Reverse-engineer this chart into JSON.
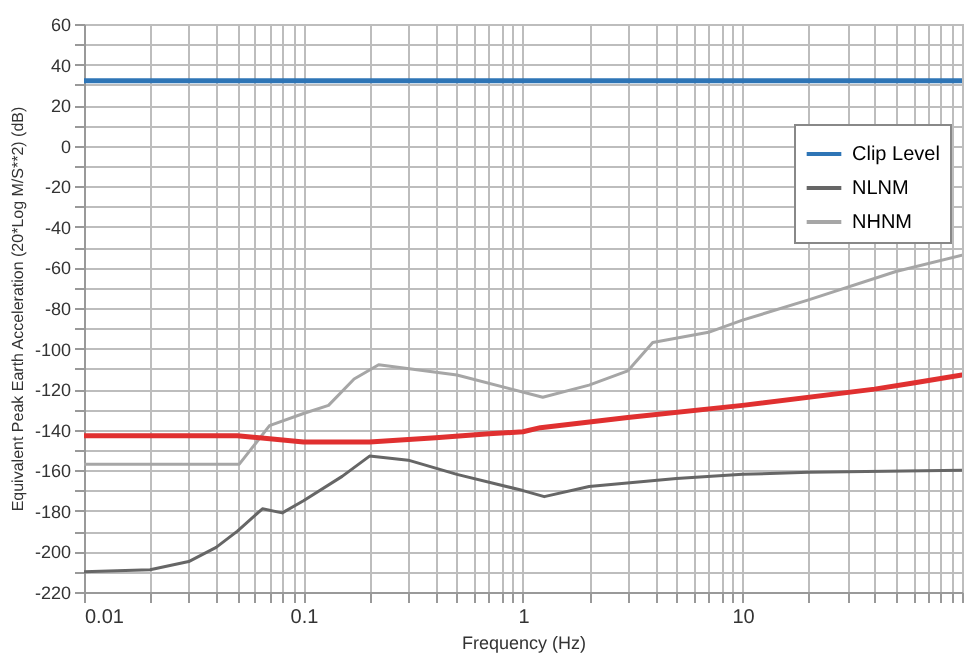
{
  "chart_data": {
    "type": "line",
    "xlabel": "Frequency (Hz)",
    "ylabel": "Equivalent Peak Earth Acceleration (20*Log M/S**2) (dB)",
    "log": "x",
    "grid": true,
    "legend": "top right",
    "xlim": [
      0.01,
      100
    ],
    "ylim": [
      -220,
      60
    ],
    "xticks": [
      0.01,
      {
        "value": 0.02,
        "label": null
      },
      {
        "value": 0.03,
        "label": null
      },
      {
        "value": 0.04,
        "label": null
      },
      {
        "value": 0.05,
        "label": null
      },
      {
        "value": 0.06,
        "label": null
      },
      {
        "value": 0.07,
        "label": null
      },
      {
        "value": 0.08,
        "label": null
      },
      {
        "value": 0.09,
        "label": null
      },
      0.1,
      {
        "value": 0.2,
        "label": null
      },
      {
        "value": 0.3,
        "label": null
      },
      {
        "value": 0.4,
        "label": null
      },
      {
        "value": 0.5,
        "label": null
      },
      {
        "value": 0.6,
        "label": null
      },
      {
        "value": 0.7,
        "label": null
      },
      {
        "value": 0.8,
        "label": null
      },
      {
        "value": 0.9,
        "label": null
      },
      1,
      {
        "value": 2,
        "label": null
      },
      {
        "value": 3,
        "label": null
      },
      {
        "value": 4,
        "label": null
      },
      {
        "value": 5,
        "label": null
      },
      {
        "value": 6,
        "label": null
      },
      {
        "value": 7,
        "label": null
      },
      {
        "value": 8,
        "label": null
      },
      {
        "value": 9,
        "label": null
      },
      10,
      {
        "value": 20,
        "label": null
      },
      {
        "value": 30,
        "label": null
      },
      {
        "value": 40,
        "label": null
      },
      {
        "value": 50,
        "label": null
      },
      {
        "value": 60,
        "label": null
      },
      {
        "value": 70,
        "label": null
      },
      {
        "value": 80,
        "label": null
      },
      {
        "value": 90,
        "label": null
      },
      {
        "value": 100,
        "label": null
      }
    ],
    "yticks": [
      -220,
      {
        "value": -210,
        "label": null
      },
      -200,
      {
        "value": -190,
        "label": null
      },
      -180,
      {
        "value": -170,
        "label": null
      },
      -160,
      {
        "value": -150,
        "label": null
      },
      -140,
      {
        "value": -130,
        "label": null
      },
      -120,
      {
        "value": -110,
        "label": null
      },
      -100,
      {
        "value": -90,
        "label": null
      },
      -80,
      {
        "value": -70,
        "label": null
      },
      -60,
      {
        "value": -50,
        "label": null
      },
      -40,
      {
        "value": -30,
        "label": null
      },
      -20,
      {
        "value": -10,
        "label": null
      },
      0,
      {
        "value": 10,
        "label": null
      },
      20,
      {
        "value": 30,
        "label": null
      },
      40,
      {
        "value": 50,
        "label": null
      },
      60
    ],
    "series": [
      {
        "name": "Clip Level",
        "color": "#2e75b6",
        "x": [
          0.01,
          100
        ],
        "values": [
          32,
          32
        ]
      },
      {
        "name": "NLNM",
        "color": "#666666",
        "x": [
          0.01,
          0.02,
          0.03,
          0.04,
          0.05,
          0.065,
          0.08,
          0.1,
          0.15,
          0.2,
          0.3,
          0.5,
          1,
          1.25,
          2,
          5,
          10,
          20,
          100
        ],
        "values": [
          -210,
          -209,
          -205,
          -198,
          -190,
          -179,
          -181,
          -175,
          -163,
          -153,
          -155,
          -162,
          -170,
          -173,
          -168,
          -164,
          -162,
          -161,
          -160
        ]
      },
      {
        "name": "NHNM",
        "color": "#a6a6a6",
        "x": [
          0.01,
          0.051,
          0.07,
          0.1,
          0.13,
          0.17,
          0.22,
          0.5,
          1.23,
          2,
          3,
          3.9,
          7,
          10,
          20,
          50,
          100
        ],
        "values": [
          -157,
          -157,
          -138,
          -132,
          -128,
          -115,
          -108,
          -113,
          -124,
          -118,
          -111,
          -97,
          -92,
          -86,
          -76,
          -62,
          -54
        ]
      },
      {
        "color": "#e03030",
        "x": [
          0.01,
          0.05,
          0.1,
          0.2,
          0.4,
          0.7,
          1,
          1.2,
          3,
          10,
          40,
          60,
          100
        ],
        "values": [
          -143,
          -143,
          -146,
          -146,
          -144,
          -142,
          -141,
          -139,
          -134,
          -128,
          -120,
          -117,
          -113
        ]
      }
    ]
  }
}
